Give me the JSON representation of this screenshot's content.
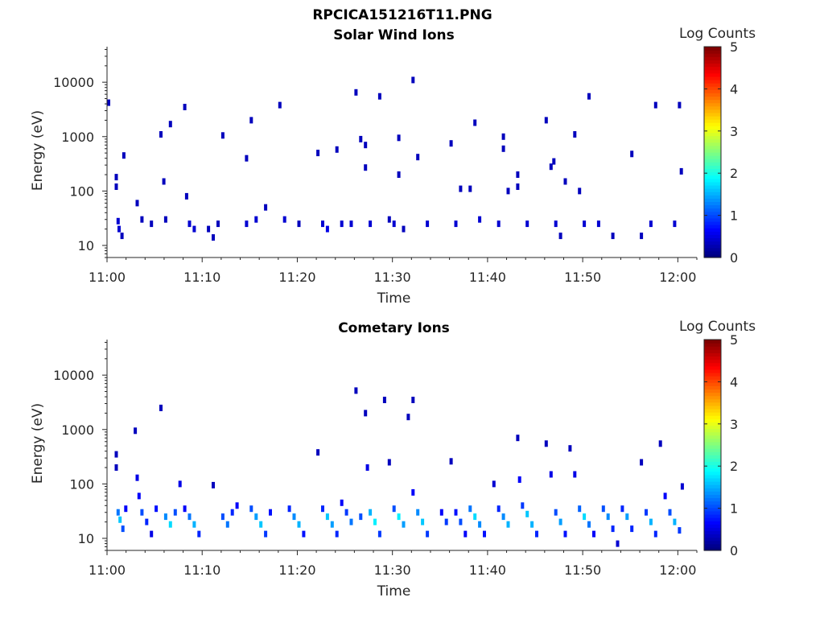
{
  "figure": {
    "title": "RPCICA151216T11.PNG"
  },
  "chart_data": [
    {
      "type": "heatmap",
      "title": "Solar Wind Ions",
      "xlabel": "Time",
      "ylabel": "Energy (eV)",
      "y_scale": "log",
      "xlim": [
        "11:00",
        "12:02"
      ],
      "ylim": [
        6,
        45000
      ],
      "x_ticks": [
        "11:00",
        "11:10",
        "11:20",
        "11:30",
        "11:40",
        "11:50",
        "12:00"
      ],
      "y_ticks": [
        "10",
        "100",
        "1000",
        "10000"
      ],
      "colorbar": {
        "label": "Log Counts",
        "range": [
          0,
          5
        ],
        "ticks": [
          "0",
          "1",
          "2",
          "3",
          "4",
          "5"
        ],
        "colormap": "jet"
      },
      "cells": [
        {
          "t": 11.0,
          "e": 4200,
          "v": 0.3
        },
        {
          "t": 11.8,
          "e": 180,
          "v": 0.3
        },
        {
          "t": 11.8,
          "e": 120,
          "v": 0.3
        },
        {
          "t": 12.0,
          "e": 28,
          "v": 0.4
        },
        {
          "t": 12.1,
          "e": 20,
          "v": 0.4
        },
        {
          "t": 12.4,
          "e": 15,
          "v": 0.3
        },
        {
          "t": 12.6,
          "e": 450,
          "v": 0.3
        },
        {
          "t": 14.0,
          "e": 60,
          "v": 0.3
        },
        {
          "t": 14.5,
          "e": 30,
          "v": 0.3
        },
        {
          "t": 15.5,
          "e": 25,
          "v": 0.3
        },
        {
          "t": 16.5,
          "e": 1100,
          "v": 0.3
        },
        {
          "t": 16.8,
          "e": 150,
          "v": 0.3
        },
        {
          "t": 17.0,
          "e": 30,
          "v": 0.3
        },
        {
          "t": 17.5,
          "e": 1700,
          "v": 0.3
        },
        {
          "t": 19.0,
          "e": 3500,
          "v": 0.3
        },
        {
          "t": 19.2,
          "e": 80,
          "v": 0.3
        },
        {
          "t": 19.5,
          "e": 25,
          "v": 0.4
        },
        {
          "t": 20.0,
          "e": 20,
          "v": 0.4
        },
        {
          "t": 21.5,
          "e": 20,
          "v": 0.3
        },
        {
          "t": 22.0,
          "e": 14,
          "v": 0.3
        },
        {
          "t": 22.5,
          "e": 25,
          "v": 0.3
        },
        {
          "t": 23.0,
          "e": 1050,
          "v": 0.3
        },
        {
          "t": 25.5,
          "e": 400,
          "v": 0.3
        },
        {
          "t": 25.5,
          "e": 25,
          "v": 0.4
        },
        {
          "t": 26.0,
          "e": 2000,
          "v": 0.3
        },
        {
          "t": 26.5,
          "e": 30,
          "v": 0.4
        },
        {
          "t": 27.5,
          "e": 50,
          "v": 0.3
        },
        {
          "t": 29.0,
          "e": 3800,
          "v": 0.3
        },
        {
          "t": 29.5,
          "e": 30,
          "v": 0.4
        },
        {
          "t": 31.0,
          "e": 25,
          "v": 0.3
        },
        {
          "t": 33.0,
          "e": 500,
          "v": 0.3
        },
        {
          "t": 33.5,
          "e": 25,
          "v": 0.4
        },
        {
          "t": 34.0,
          "e": 20,
          "v": 0.5
        },
        {
          "t": 35.0,
          "e": 580,
          "v": 0.3
        },
        {
          "t": 35.5,
          "e": 25,
          "v": 0.4
        },
        {
          "t": 36.5,
          "e": 25,
          "v": 0.4
        },
        {
          "t": 37.0,
          "e": 6500,
          "v": 0.3
        },
        {
          "t": 37.5,
          "e": 900,
          "v": 0.3
        },
        {
          "t": 38.0,
          "e": 700,
          "v": 0.3
        },
        {
          "t": 38.0,
          "e": 270,
          "v": 0.3
        },
        {
          "t": 38.5,
          "e": 25,
          "v": 0.4
        },
        {
          "t": 39.5,
          "e": 5500,
          "v": 0.3
        },
        {
          "t": 40.5,
          "e": 30,
          "v": 0.3
        },
        {
          "t": 41.0,
          "e": 25,
          "v": 0.4
        },
        {
          "t": 41.5,
          "e": 950,
          "v": 0.3
        },
        {
          "t": 41.5,
          "e": 200,
          "v": 0.3
        },
        {
          "t": 42.0,
          "e": 20,
          "v": 0.3
        },
        {
          "t": 43.0,
          "e": 11000,
          "v": 0.3
        },
        {
          "t": 43.5,
          "e": 420,
          "v": 0.3
        },
        {
          "t": 44.5,
          "e": 25,
          "v": 0.4
        },
        {
          "t": 47.0,
          "e": 750,
          "v": 0.3
        },
        {
          "t": 47.5,
          "e": 25,
          "v": 0.4
        },
        {
          "t": 48.0,
          "e": 110,
          "v": 0.3
        },
        {
          "t": 49.0,
          "e": 110,
          "v": 0.3
        },
        {
          "t": 49.5,
          "e": 1800,
          "v": 0.3
        },
        {
          "t": 50.0,
          "e": 30,
          "v": 0.4
        },
        {
          "t": 52.5,
          "e": 1000,
          "v": 0.3
        },
        {
          "t": 52.5,
          "e": 600,
          "v": 0.3
        },
        {
          "t": 52.0,
          "e": 25,
          "v": 0.4
        },
        {
          "t": 53.0,
          "e": 100,
          "v": 0.3
        },
        {
          "t": 54.0,
          "e": 200,
          "v": 0.3
        },
        {
          "t": 54.0,
          "e": 120,
          "v": 0.3
        },
        {
          "t": 55.0,
          "e": 25,
          "v": 0.4
        },
        {
          "t": 57.0,
          "e": 2000,
          "v": 0.3
        },
        {
          "t": 57.5,
          "e": 280,
          "v": 0.3
        },
        {
          "t": 57.8,
          "e": 350,
          "v": 0.3
        },
        {
          "t": 58.0,
          "e": 25,
          "v": 0.4
        },
        {
          "t": 58.5,
          "e": 15,
          "v": 0.3
        },
        {
          "t": 59.0,
          "e": 150,
          "v": 0.3
        },
        {
          "t": 60.0,
          "e": 1100,
          "v": 0.3
        },
        {
          "t": 60.5,
          "e": 100,
          "v": 0.3
        },
        {
          "t": 61.0,
          "e": 25,
          "v": 0.4
        },
        {
          "t": 61.5,
          "e": 5500,
          "v": 0.3
        },
        {
          "t": 62.5,
          "e": 25,
          "v": 0.4
        },
        {
          "t": 64.0,
          "e": 15,
          "v": 0.3
        },
        {
          "t": 66.0,
          "e": 480,
          "v": 0.3
        },
        {
          "t": 67.0,
          "e": 15,
          "v": 0.3
        },
        {
          "t": 68.0,
          "e": 25,
          "v": 0.4
        },
        {
          "t": 68.5,
          "e": 3800,
          "v": 0.3
        },
        {
          "t": 70.5,
          "e": 25,
          "v": 0.4
        },
        {
          "t": 71.0,
          "e": 3800,
          "v": 0.3
        },
        {
          "t": 71.2,
          "e": 230,
          "v": 0.3
        }
      ]
    },
    {
      "type": "heatmap",
      "title": "Cometary Ions",
      "xlabel": "Time",
      "ylabel": "Energy (eV)",
      "y_scale": "log",
      "xlim": [
        "11:00",
        "12:02"
      ],
      "ylim": [
        6,
        45000
      ],
      "x_ticks": [
        "11:00",
        "11:10",
        "11:20",
        "11:30",
        "11:40",
        "11:50",
        "12:00"
      ],
      "y_ticks": [
        "10",
        "100",
        "1000",
        "10000"
      ],
      "colorbar": {
        "label": "Log Counts",
        "range": [
          0,
          5
        ],
        "ticks": [
          "0",
          "1",
          "2",
          "3",
          "4",
          "5"
        ],
        "colormap": "jet"
      },
      "cells": [
        {
          "t": 11.8,
          "e": 350,
          "v": 0.3
        },
        {
          "t": 11.8,
          "e": 200,
          "v": 0.3
        },
        {
          "t": 12.0,
          "e": 30,
          "v": 1.2
        },
        {
          "t": 12.2,
          "e": 22,
          "v": 1.6
        },
        {
          "t": 12.5,
          "e": 15,
          "v": 1.0
        },
        {
          "t": 12.8,
          "e": 35,
          "v": 0.6
        },
        {
          "t": 13.8,
          "e": 950,
          "v": 0.3
        },
        {
          "t": 14.0,
          "e": 130,
          "v": 0.5
        },
        {
          "t": 14.2,
          "e": 60,
          "v": 0.6
        },
        {
          "t": 14.5,
          "e": 30,
          "v": 1.0
        },
        {
          "t": 15.0,
          "e": 20,
          "v": 0.8
        },
        {
          "t": 15.5,
          "e": 12,
          "v": 0.5
        },
        {
          "t": 16.0,
          "e": 35,
          "v": 0.7
        },
        {
          "t": 16.5,
          "e": 2500,
          "v": 0.3
        },
        {
          "t": 17.0,
          "e": 25,
          "v": 1.3
        },
        {
          "t": 17.5,
          "e": 18,
          "v": 1.7
        },
        {
          "t": 18.0,
          "e": 30,
          "v": 1.0
        },
        {
          "t": 18.5,
          "e": 100,
          "v": 0.5
        },
        {
          "t": 19.0,
          "e": 35,
          "v": 0.6
        },
        {
          "t": 19.5,
          "e": 25,
          "v": 1.2
        },
        {
          "t": 20.0,
          "e": 18,
          "v": 1.5
        },
        {
          "t": 20.5,
          "e": 12,
          "v": 0.8
        },
        {
          "t": 22.0,
          "e": 95,
          "v": 0.3
        },
        {
          "t": 23.0,
          "e": 25,
          "v": 1.0
        },
        {
          "t": 23.5,
          "e": 18,
          "v": 1.2
        },
        {
          "t": 24.0,
          "e": 30,
          "v": 0.8
        },
        {
          "t": 24.5,
          "e": 40,
          "v": 0.6
        },
        {
          "t": 26.0,
          "e": 35,
          "v": 1.0
        },
        {
          "t": 26.5,
          "e": 25,
          "v": 1.4
        },
        {
          "t": 27.0,
          "e": 18,
          "v": 1.6
        },
        {
          "t": 27.5,
          "e": 12,
          "v": 0.9
        },
        {
          "t": 28.0,
          "e": 30,
          "v": 0.7
        },
        {
          "t": 30.0,
          "e": 35,
          "v": 0.8
        },
        {
          "t": 30.5,
          "e": 25,
          "v": 1.3
        },
        {
          "t": 31.0,
          "e": 18,
          "v": 1.5
        },
        {
          "t": 31.5,
          "e": 12,
          "v": 0.7
        },
        {
          "t": 33.0,
          "e": 380,
          "v": 0.3
        },
        {
          "t": 33.5,
          "e": 35,
          "v": 0.8
        },
        {
          "t": 34.0,
          "e": 25,
          "v": 1.6
        },
        {
          "t": 34.5,
          "e": 18,
          "v": 1.4
        },
        {
          "t": 35.0,
          "e": 12,
          "v": 0.8
        },
        {
          "t": 35.5,
          "e": 45,
          "v": 0.6
        },
        {
          "t": 36.0,
          "e": 30,
          "v": 0.9
        },
        {
          "t": 36.5,
          "e": 20,
          "v": 1.2
        },
        {
          "t": 37.0,
          "e": 5200,
          "v": 0.3
        },
        {
          "t": 37.5,
          "e": 25,
          "v": 1.0
        },
        {
          "t": 38.0,
          "e": 2000,
          "v": 0.3
        },
        {
          "t": 38.2,
          "e": 200,
          "v": 0.5
        },
        {
          "t": 38.5,
          "e": 30,
          "v": 1.5
        },
        {
          "t": 39.0,
          "e": 20,
          "v": 1.8
        },
        {
          "t": 39.5,
          "e": 12,
          "v": 0.9
        },
        {
          "t": 40.0,
          "e": 3500,
          "v": 0.3
        },
        {
          "t": 40.5,
          "e": 250,
          "v": 0.3
        },
        {
          "t": 41.0,
          "e": 35,
          "v": 1.0
        },
        {
          "t": 41.5,
          "e": 25,
          "v": 1.8
        },
        {
          "t": 42.0,
          "e": 18,
          "v": 1.4
        },
        {
          "t": 42.5,
          "e": 1700,
          "v": 0.3
        },
        {
          "t": 43.0,
          "e": 3500,
          "v": 0.3
        },
        {
          "t": 43.0,
          "e": 70,
          "v": 0.6
        },
        {
          "t": 43.5,
          "e": 30,
          "v": 1.3
        },
        {
          "t": 44.0,
          "e": 20,
          "v": 1.6
        },
        {
          "t": 44.5,
          "e": 12,
          "v": 0.9
        },
        {
          "t": 46.0,
          "e": 30,
          "v": 0.6
        },
        {
          "t": 46.5,
          "e": 20,
          "v": 0.9
        },
        {
          "t": 47.0,
          "e": 260,
          "v": 0.3
        },
        {
          "t": 47.5,
          "e": 30,
          "v": 0.7
        },
        {
          "t": 48.0,
          "e": 20,
          "v": 1.0
        },
        {
          "t": 48.5,
          "e": 12,
          "v": 0.6
        },
        {
          "t": 49.0,
          "e": 35,
          "v": 1.2
        },
        {
          "t": 49.5,
          "e": 25,
          "v": 1.7
        },
        {
          "t": 50.0,
          "e": 18,
          "v": 1.3
        },
        {
          "t": 50.5,
          "e": 12,
          "v": 0.7
        },
        {
          "t": 51.5,
          "e": 100,
          "v": 0.4
        },
        {
          "t": 52.0,
          "e": 35,
          "v": 0.8
        },
        {
          "t": 52.5,
          "e": 25,
          "v": 1.3
        },
        {
          "t": 53.0,
          "e": 18,
          "v": 1.5
        },
        {
          "t": 54.0,
          "e": 700,
          "v": 0.3
        },
        {
          "t": 54.2,
          "e": 120,
          "v": 0.6
        },
        {
          "t": 54.5,
          "e": 40,
          "v": 0.9
        },
        {
          "t": 55.0,
          "e": 28,
          "v": 1.6
        },
        {
          "t": 55.5,
          "e": 18,
          "v": 1.5
        },
        {
          "t": 56.0,
          "e": 12,
          "v": 0.8
        },
        {
          "t": 57.0,
          "e": 550,
          "v": 0.3
        },
        {
          "t": 57.5,
          "e": 150,
          "v": 0.5
        },
        {
          "t": 58.0,
          "e": 30,
          "v": 1.0
        },
        {
          "t": 58.5,
          "e": 20,
          "v": 1.4
        },
        {
          "t": 59.0,
          "e": 12,
          "v": 0.7
        },
        {
          "t": 59.5,
          "e": 450,
          "v": 0.3
        },
        {
          "t": 60.0,
          "e": 150,
          "v": 0.5
        },
        {
          "t": 60.5,
          "e": 35,
          "v": 1.1
        },
        {
          "t": 61.0,
          "e": 25,
          "v": 1.7
        },
        {
          "t": 61.5,
          "e": 18,
          "v": 1.2
        },
        {
          "t": 62.0,
          "e": 12,
          "v": 0.6
        },
        {
          "t": 63.0,
          "e": 35,
          "v": 1.0
        },
        {
          "t": 63.5,
          "e": 25,
          "v": 1.3
        },
        {
          "t": 64.0,
          "e": 15,
          "v": 0.8
        },
        {
          "t": 64.5,
          "e": 8,
          "v": 0.4
        },
        {
          "t": 65.0,
          "e": 35,
          "v": 0.8
        },
        {
          "t": 65.5,
          "e": 25,
          "v": 1.4
        },
        {
          "t": 66.0,
          "e": 15,
          "v": 0.8
        },
        {
          "t": 67.0,
          "e": 250,
          "v": 0.3
        },
        {
          "t": 67.5,
          "e": 30,
          "v": 0.9
        },
        {
          "t": 68.0,
          "e": 20,
          "v": 1.5
        },
        {
          "t": 68.5,
          "e": 12,
          "v": 0.8
        },
        {
          "t": 69.0,
          "e": 550,
          "v": 0.3
        },
        {
          "t": 69.5,
          "e": 60,
          "v": 0.6
        },
        {
          "t": 70.0,
          "e": 30,
          "v": 1.0
        },
        {
          "t": 70.5,
          "e": 20,
          "v": 1.5
        },
        {
          "t": 71.0,
          "e": 14,
          "v": 0.9
        },
        {
          "t": 71.3,
          "e": 90,
          "v": 0.4
        }
      ]
    }
  ]
}
